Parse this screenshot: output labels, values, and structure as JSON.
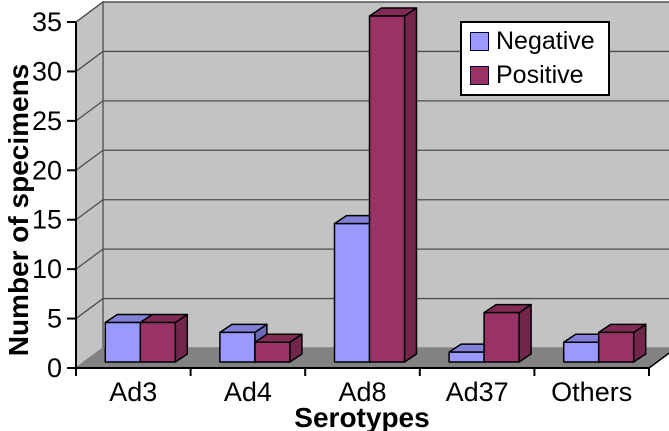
{
  "chart_data": {
    "type": "bar",
    "projection": "3d-clustered-column",
    "title": "",
    "xlabel": "Serotypes",
    "ylabel": "Number of specimens",
    "categories": [
      "Ad3",
      "Ad4",
      "Ad8",
      "Ad37",
      "Others"
    ],
    "series": [
      {
        "name": "Negative",
        "values": [
          4,
          3,
          14,
          1,
          2
        ],
        "color": "#9999FF",
        "color_top": "#8181D9",
        "color_side": "#6A6AB5"
      },
      {
        "name": "Positive",
        "values": [
          4,
          2,
          35,
          5,
          3
        ],
        "color": "#993366",
        "color_top": "#812B56",
        "color_side": "#73264C"
      }
    ],
    "ylim": [
      0,
      35
    ],
    "ytick_step": 5,
    "y_ticks": [
      "0",
      "5",
      "10",
      "15",
      "20",
      "25",
      "30",
      "35"
    ],
    "grid": true,
    "legend_position": "top-right",
    "theme": {
      "wall_color": "#C3C3C3",
      "floor_color": "#828282",
      "gridline_color": "#4D4D4D",
      "axis_color": "#000000",
      "bar_outline": "#000000",
      "text_color": "#000000",
      "background": "#FFFFFF"
    }
  }
}
